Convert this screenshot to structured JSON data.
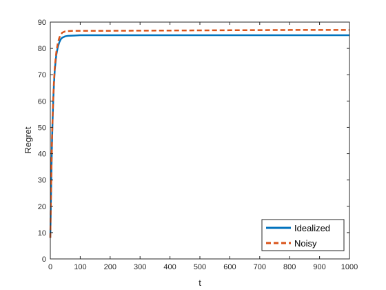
{
  "chart_data": {
    "type": "line",
    "xlabel": "t",
    "ylabel": "Regret",
    "xlim": [
      0,
      1000
    ],
    "ylim": [
      0,
      90
    ],
    "xticks": [
      0,
      100,
      200,
      300,
      400,
      500,
      600,
      700,
      800,
      900,
      1000
    ],
    "yticks": [
      0,
      10,
      20,
      30,
      40,
      50,
      60,
      70,
      80,
      90
    ],
    "grid": false,
    "legend_position": "bottom-right",
    "series": [
      {
        "name": "Idealized",
        "color": "#0072BD",
        "style": "solid",
        "x": [
          0,
          2,
          4,
          6,
          8,
          10,
          12,
          15,
          20,
          25,
          30,
          35,
          40,
          50,
          60,
          80,
          100,
          200,
          400,
          600,
          800,
          1000
        ],
        "y": [
          8,
          22,
          35,
          46,
          54,
          61,
          66,
          72,
          77.5,
          80.5,
          82.3,
          83.5,
          84.1,
          84.6,
          84.8,
          84.9,
          85,
          85,
          85,
          85,
          85,
          85
        ]
      },
      {
        "name": "Noisy",
        "color": "#D95319",
        "style": "dashed",
        "x": [
          0,
          2,
          4,
          6,
          8,
          10,
          12,
          15,
          20,
          25,
          30,
          35,
          40,
          50,
          60,
          80,
          100,
          200,
          400,
          600,
          800,
          1000
        ],
        "y": [
          8,
          23,
          36,
          47,
          55,
          62,
          67,
          73,
          78.5,
          82,
          84,
          85.3,
          86,
          86.5,
          86.6,
          86.7,
          86.7,
          86.7,
          86.8,
          86.9,
          87,
          87
        ]
      }
    ]
  }
}
